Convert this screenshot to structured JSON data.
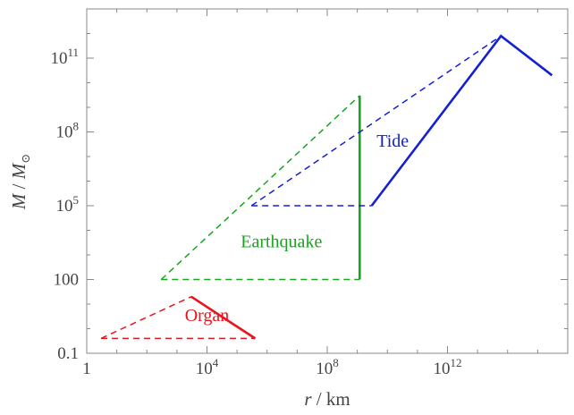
{
  "chart_data": {
    "type": "line",
    "xscale": "log",
    "yscale": "log",
    "xlim": [
      1,
      1e+16
    ],
    "ylim": [
      0.1,
      10000000000000.0
    ],
    "xlabel_var": "r",
    "xlabel_unit": " / km",
    "ylabel_var": "M",
    "ylabel_sep": " / ",
    "ylabel_unit": "M",
    "ylabel_sub": "⊙",
    "grid": false,
    "x_ticks": [
      {
        "value": 1,
        "base": "1",
        "exp": ""
      },
      {
        "value": 10000,
        "base": "10",
        "exp": "4"
      },
      {
        "value": 100000000,
        "base": "10",
        "exp": "8"
      },
      {
        "value": 1000000000000,
        "base": "10",
        "exp": "12"
      }
    ],
    "y_ticks": [
      {
        "value": 0.1,
        "base": "0.1",
        "exp": ""
      },
      {
        "value": 100,
        "base": "100",
        "exp": ""
      },
      {
        "value": 100000,
        "base": "10",
        "exp": "5"
      },
      {
        "value": 100000000,
        "base": "10",
        "exp": "8"
      },
      {
        "value": 100000000000,
        "base": "10",
        "exp": "11"
      }
    ],
    "series": [
      {
        "name": "Organ",
        "color": "#e8141e",
        "solid": [
          [
            3000,
            20
          ],
          [
            400000,
            0.4
          ]
        ],
        "dashed": [
          [
            3,
            0.4
          ],
          [
            400000,
            0.4
          ]
        ],
        "dashed2": [
          [
            3,
            0.4
          ],
          [
            3000,
            20
          ]
        ]
      },
      {
        "name": "Earthquake",
        "color": "#17a51d",
        "solid": [
          [
            1200000000,
            100
          ],
          [
            1200000000,
            3000000000
          ]
        ],
        "dashed": [
          [
            300,
            100
          ],
          [
            1200000000,
            100
          ]
        ],
        "dashed2": [
          [
            300,
            100
          ],
          [
            1200000000,
            3000000000
          ]
        ]
      },
      {
        "name": "Tide",
        "color": "#1420d2",
        "solid": [
          [
            3000000000,
            100000
          ],
          [
            60000000000000,
            800000000000
          ],
          [
            3000000000000000,
            20000000000
          ]
        ],
        "dashed": [
          [
            300000,
            100000
          ],
          [
            3000000000,
            100000
          ]
        ],
        "dashed2": [
          [
            300000,
            100000
          ],
          [
            60000000000000,
            800000000000
          ]
        ]
      }
    ],
    "labels": [
      {
        "text": "Organ",
        "x": 10000,
        "y": 2,
        "color": "#e8141e"
      },
      {
        "text": "Earthquake",
        "x": 3000000,
        "y": 2000,
        "color": "#17a51d"
      },
      {
        "text": "Tide",
        "x": 15000000000,
        "y": 25000000,
        "color": "#1420d2"
      }
    ]
  }
}
